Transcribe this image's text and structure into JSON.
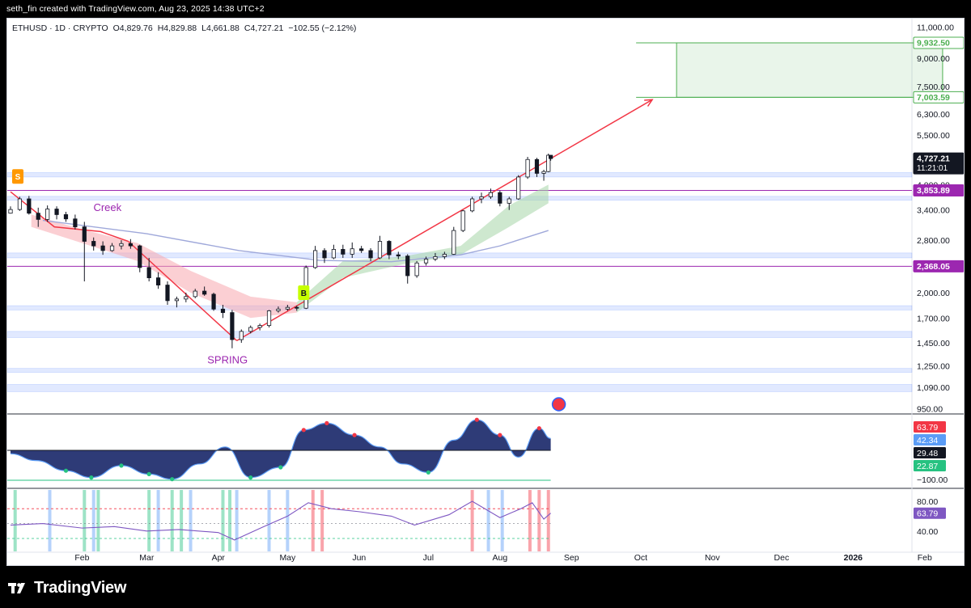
{
  "header": {
    "attribution": "seth_fin created with TradingView.com, Aug 23, 2025 14:38 UTC+2"
  },
  "footer": {
    "brand": "TradingView"
  },
  "colors": {
    "candle": "#131722",
    "trend_line": "#f23645",
    "level_line": "#9c27b0",
    "target_box": "#4caf50",
    "support_band": "#2962ff",
    "ema_ribbon_red": "#f7a8ae",
    "ema_ribbon_green": "#a5d6a7",
    "sma_blue": "#9fa8da",
    "osc_fill": "#1c2a6b",
    "rsi_line": "#7e57c2"
  },
  "chart_data": [
    {
      "type": "candlestick",
      "symbol_line": {
        "symbol": "ETHUSD · 1D · CRYPTO",
        "open": "O4,829.76",
        "high": "H4,829.88",
        "low": "L4,661.88",
        "close": "C4,727.21",
        "change": "−102.55 (−2.12%)"
      },
      "x_axis": {
        "ticks": [
          "Feb",
          "Mar",
          "Apr",
          "May",
          "Jun",
          "Jul",
          "Aug",
          "Sep",
          "Oct",
          "Nov",
          "Dec",
          "2026",
          "Feb"
        ]
      },
      "y_axis": {
        "scale": "log",
        "ticks": [
          11000,
          9000,
          7500,
          6300,
          5500,
          4000,
          3400,
          2800,
          2000,
          1700,
          1450,
          1250,
          1090,
          950
        ],
        "tick_labels": [
          "11,000.00",
          "9,000.00",
          "7,500.00",
          "6,300.00",
          "5,500.00",
          "4,000.00",
          "3,400.00",
          "2,800.00",
          "2,000.00",
          "1,700.00",
          "1,450.00",
          "1,250.00",
          "1,090.00",
          "950.00"
        ]
      },
      "price_labels": [
        {
          "value": 9932.5,
          "text": "9,932.50",
          "color": "#4caf50"
        },
        {
          "value": 7003.59,
          "text": "7,003.59",
          "color": "#4caf50"
        },
        {
          "value": 4727.21,
          "text": "4,727.21",
          "sub": "11:21:01",
          "color": "#131722"
        },
        {
          "value": 3853.89,
          "text": "3,853.89",
          "color": "#9c27b0"
        },
        {
          "value": 2368.05,
          "text": "2,368.05",
          "color": "#9c27b0"
        }
      ],
      "annotations": [
        {
          "text": "Creek",
          "date": "2025-02-12",
          "price": 3380
        },
        {
          "text": "SPRING",
          "date": "2025-04-05",
          "price": 1270
        },
        {
          "text": "S",
          "date": "2025-01-01",
          "price": 4150
        },
        {
          "text": "B",
          "date": "2025-05-08",
          "price": 1990
        }
      ],
      "horizontal_levels": [
        3853.89,
        2368.05
      ],
      "target_zone": {
        "from_date": "2025-10-06",
        "to_date": "2026-01-31",
        "high": 9932.5,
        "low": 7003.59
      },
      "trend_lines": [
        {
          "points": [
            [
              "2025-01-01",
              3820
            ],
            [
              "2025-01-20",
              3050
            ],
            [
              "2025-02-09",
              2960
            ],
            [
              "2025-02-21",
              2780
            ]
          ]
        },
        {
          "points": [
            [
              "2025-02-21",
              2780
            ],
            [
              "2025-04-09",
              1470
            ]
          ]
        },
        {
          "points": [
            [
              "2025-04-09",
              1470
            ],
            [
              "2025-10-06",
              6900
            ]
          ]
        }
      ],
      "support_bands": [
        {
          "low": 4200,
          "high": 4320
        },
        {
          "low": 3620,
          "high": 3710
        },
        {
          "low": 2500,
          "high": 2580
        },
        {
          "low": 1790,
          "high": 1840
        },
        {
          "low": 1500,
          "high": 1560
        },
        {
          "low": 1200,
          "high": 1230
        },
        {
          "low": 1060,
          "high": 1110
        }
      ],
      "sma_line": [
        [
          "2025-01-15",
          3180
        ],
        [
          "2025-03-01",
          2920
        ],
        [
          "2025-04-10",
          2620
        ],
        [
          "2025-05-15",
          2460
        ],
        [
          "2025-06-15",
          2440
        ],
        [
          "2025-07-15",
          2550
        ],
        [
          "2025-08-01",
          2700
        ],
        [
          "2025-08-22",
          2980
        ]
      ],
      "candles": [
        [
          "2025-01-01",
          3330,
          3480,
          3320,
          3410
        ],
        [
          "2025-01-05",
          3410,
          3700,
          3380,
          3650
        ],
        [
          "2025-01-09",
          3650,
          3720,
          3300,
          3330
        ],
        [
          "2025-01-13",
          3330,
          3450,
          3050,
          3200
        ],
        [
          "2025-01-17",
          3200,
          3500,
          3150,
          3420
        ],
        [
          "2025-01-21",
          3420,
          3480,
          3200,
          3300
        ],
        [
          "2025-01-25",
          3300,
          3360,
          3150,
          3210
        ],
        [
          "2025-01-29",
          3210,
          3300,
          3000,
          3050
        ],
        [
          "2025-02-02",
          3050,
          3150,
          2150,
          2780
        ],
        [
          "2025-02-06",
          2780,
          2850,
          2620,
          2700
        ],
        [
          "2025-02-10",
          2700,
          2780,
          2550,
          2620
        ],
        [
          "2025-02-14",
          2620,
          2750,
          2600,
          2700
        ],
        [
          "2025-02-18",
          2700,
          2800,
          2640,
          2740
        ],
        [
          "2025-02-22",
          2740,
          2820,
          2650,
          2700
        ],
        [
          "2025-02-26",
          2700,
          2720,
          2280,
          2350
        ],
        [
          "2025-03-02",
          2350,
          2500,
          2150,
          2200
        ],
        [
          "2025-03-06",
          2200,
          2280,
          2050,
          2100
        ],
        [
          "2025-03-10",
          2100,
          2150,
          1850,
          1900
        ],
        [
          "2025-03-14",
          1900,
          1950,
          1820,
          1920
        ],
        [
          "2025-03-18",
          1920,
          2000,
          1880,
          1950
        ],
        [
          "2025-03-22",
          1950,
          2050,
          1930,
          2020
        ],
        [
          "2025-03-26",
          2020,
          2080,
          1960,
          1980
        ],
        [
          "2025-03-30",
          1980,
          2000,
          1780,
          1800
        ],
        [
          "2025-04-03",
          1800,
          1850,
          1700,
          1760
        ],
        [
          "2025-04-07",
          1760,
          1790,
          1400,
          1480
        ],
        [
          "2025-04-11",
          1480,
          1580,
          1450,
          1560
        ],
        [
          "2025-04-15",
          1560,
          1620,
          1540,
          1600
        ],
        [
          "2025-04-19",
          1600,
          1640,
          1570,
          1620
        ],
        [
          "2025-04-23",
          1620,
          1790,
          1600,
          1780
        ],
        [
          "2025-04-27",
          1780,
          1830,
          1760,
          1800
        ],
        [
          "2025-05-01",
          1800,
          1850,
          1780,
          1820
        ],
        [
          "2025-05-05",
          1820,
          1840,
          1780,
          1810
        ],
        [
          "2025-05-09",
          1810,
          2380,
          1800,
          2350
        ],
        [
          "2025-05-13",
          2350,
          2700,
          2330,
          2620
        ],
        [
          "2025-05-17",
          2620,
          2660,
          2420,
          2500
        ],
        [
          "2025-05-21",
          2500,
          2720,
          2480,
          2640
        ],
        [
          "2025-05-25",
          2640,
          2720,
          2500,
          2560
        ],
        [
          "2025-05-29",
          2560,
          2760,
          2500,
          2650
        ],
        [
          "2025-06-02",
          2650,
          2700,
          2580,
          2620
        ],
        [
          "2025-06-06",
          2620,
          2660,
          2450,
          2500
        ],
        [
          "2025-06-10",
          2500,
          2880,
          2480,
          2780
        ],
        [
          "2025-06-14",
          2780,
          2800,
          2480,
          2550
        ],
        [
          "2025-06-18",
          2550,
          2600,
          2480,
          2530
        ],
        [
          "2025-06-22",
          2530,
          2560,
          2120,
          2230
        ],
        [
          "2025-06-26",
          2230,
          2450,
          2200,
          2420
        ],
        [
          "2025-06-30",
          2420,
          2520,
          2380,
          2480
        ],
        [
          "2025-07-04",
          2480,
          2580,
          2450,
          2520
        ],
        [
          "2025-07-08",
          2520,
          2600,
          2480,
          2560
        ],
        [
          "2025-07-12",
          2560,
          3050,
          2550,
          2980
        ],
        [
          "2025-07-16",
          2980,
          3400,
          2950,
          3380
        ],
        [
          "2025-07-20",
          3380,
          3700,
          3350,
          3650
        ],
        [
          "2025-07-24",
          3650,
          3800,
          3550,
          3700
        ],
        [
          "2025-07-28",
          3700,
          3900,
          3650,
          3800
        ],
        [
          "2025-08-01",
          3800,
          3850,
          3480,
          3550
        ],
        [
          "2025-08-05",
          3550,
          3700,
          3400,
          3650
        ],
        [
          "2025-08-09",
          3650,
          4250,
          3630,
          4200
        ],
        [
          "2025-08-13",
          4200,
          4780,
          4150,
          4700
        ],
        [
          "2025-08-17",
          4700,
          4750,
          4200,
          4300
        ],
        [
          "2025-08-20",
          4300,
          4400,
          4100,
          4350
        ],
        [
          "2025-08-22",
          4350,
          4880,
          4330,
          4830
        ],
        [
          "2025-08-23",
          4829.76,
          4829.88,
          4661.88,
          4727.21
        ]
      ]
    },
    {
      "type": "area",
      "name": "oscillator",
      "y_axis": {
        "tick_labels": [
          "−100.00"
        ]
      },
      "value_labels": [
        {
          "text": "63.79",
          "color": "#f23645"
        },
        {
          "text": "42.34",
          "color": "#5b9cf6"
        },
        {
          "text": "29.48",
          "color": "#131722"
        },
        {
          "text": "22.87",
          "color": "#26c281"
        }
      ],
      "x": [
        "2025-01-01",
        "2025-01-12",
        "2025-01-25",
        "2025-02-05",
        "2025-02-18",
        "2025-03-02",
        "2025-03-12",
        "2025-03-24",
        "2025-04-04",
        "2025-04-15",
        "2025-04-28",
        "2025-05-08",
        "2025-05-18",
        "2025-05-30",
        "2025-06-10",
        "2025-06-20",
        "2025-07-01",
        "2025-07-12",
        "2025-07-22",
        "2025-08-01",
        "2025-08-09",
        "2025-08-18",
        "2025-08-23"
      ],
      "values": [
        -10,
        -30,
        -60,
        -80,
        -45,
        -70,
        -85,
        -40,
        10,
        -80,
        -50,
        60,
        80,
        45,
        10,
        -40,
        -65,
        30,
        90,
        45,
        -20,
        65,
        35
      ]
    },
    {
      "type": "line",
      "name": "rsi",
      "y_axis": {
        "ticks": [
          80,
          40
        ],
        "tick_labels": [
          "80.00",
          "40.00"
        ]
      },
      "value_labels": [
        {
          "text": "63.79",
          "color": "#7e57c2"
        }
      ],
      "x": [
        "2025-01-01",
        "2025-01-15",
        "2025-02-01",
        "2025-02-15",
        "2025-03-01",
        "2025-03-15",
        "2025-04-01",
        "2025-04-08",
        "2025-04-20",
        "2025-05-01",
        "2025-05-10",
        "2025-05-20",
        "2025-06-01",
        "2025-06-15",
        "2025-06-25",
        "2025-07-10",
        "2025-07-20",
        "2025-08-01",
        "2025-08-10",
        "2025-08-15",
        "2025-08-20",
        "2025-08-23"
      ],
      "values": [
        48,
        50,
        44,
        46,
        40,
        42,
        38,
        28,
        45,
        60,
        78,
        70,
        66,
        60,
        48,
        62,
        80,
        58,
        70,
        78,
        56,
        64
      ]
    }
  ]
}
